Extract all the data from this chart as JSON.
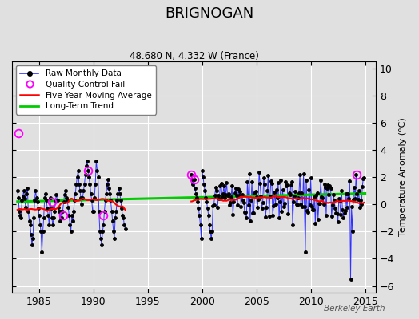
{
  "title": "BRIGNOGAN",
  "subtitle": "48.680 N, 4.332 W (France)",
  "ylabel": "Temperature Anomaly (°C)",
  "watermark": "Berkeley Earth",
  "xlim": [
    1982.5,
    2016.0
  ],
  "ylim": [
    -6.5,
    10.5
  ],
  "yticks": [
    -6,
    -4,
    -2,
    0,
    2,
    4,
    6,
    8,
    10
  ],
  "xticks": [
    1985,
    1990,
    1995,
    2000,
    2005,
    2010,
    2015
  ],
  "bg_color": "#e0e0e0",
  "raw_color": "#3333ff",
  "qc_color": "#ff00ff",
  "ma_color": "#ff0000",
  "trend_color": "#00cc00",
  "seed": 17
}
